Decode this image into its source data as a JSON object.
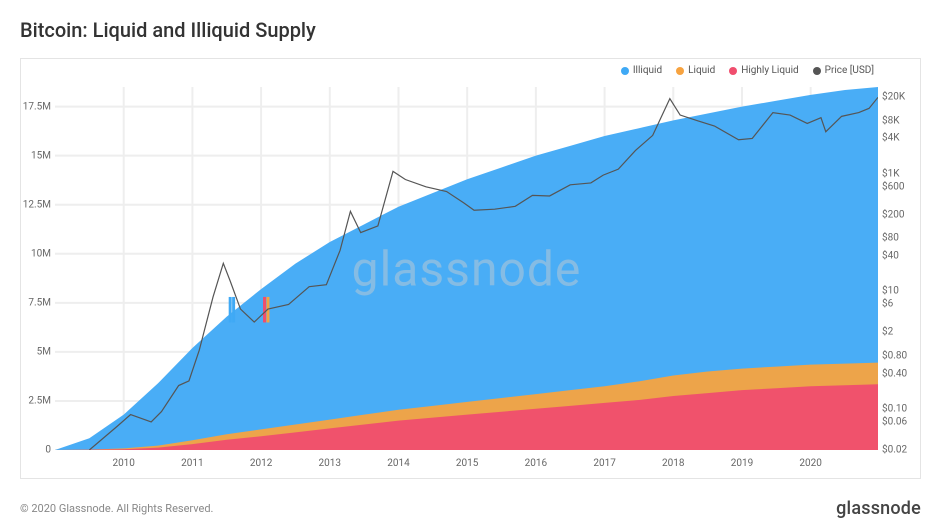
{
  "title": "Bitcoin: Liquid and Illiquid Supply",
  "copyright": "© 2020 Glassnode. All Rights Reserved.",
  "brand": "glassnode",
  "watermark": "glassnode",
  "chart": {
    "type": "stacked-area+line",
    "legend": [
      {
        "label": "Illiquid",
        "color": "#3fa9f5",
        "shape": "dot"
      },
      {
        "label": "Liquid",
        "color": "#f7a340",
        "shape": "dot"
      },
      {
        "label": "Highly Liquid",
        "color": "#f04e6e",
        "shape": "dot"
      },
      {
        "label": "Price [USD]",
        "color": "#555555",
        "shape": "dot"
      }
    ],
    "left_axis": {
      "label_fontsize": 10,
      "label_color": "#666",
      "min": 0,
      "max": 18500000,
      "ticks": [
        {
          "v": 0,
          "label": "0"
        },
        {
          "v": 2500000,
          "label": "2.5M"
        },
        {
          "v": 5000000,
          "label": "5M"
        },
        {
          "v": 7500000,
          "label": "7.5M"
        },
        {
          "v": 10000000,
          "label": "10M"
        },
        {
          "v": 12500000,
          "label": "12.5M"
        },
        {
          "v": 15000000,
          "label": "15M"
        },
        {
          "v": 17500000,
          "label": "17.5M"
        }
      ]
    },
    "right_axis": {
      "scale": "log",
      "label_fontsize": 10,
      "label_color": "#666",
      "min": 0.02,
      "max": 30000,
      "ticks": [
        {
          "v": 0.02,
          "label": "$0.02"
        },
        {
          "v": 0.06,
          "label": "$0.06"
        },
        {
          "v": 0.1,
          "label": "$0.10"
        },
        {
          "v": 0.4,
          "label": "$0.40"
        },
        {
          "v": 0.8,
          "label": "$0.80"
        },
        {
          "v": 2,
          "label": "$2"
        },
        {
          "v": 6,
          "label": "$6"
        },
        {
          "v": 10,
          "label": "$10"
        },
        {
          "v": 40,
          "label": "$40"
        },
        {
          "v": 80,
          "label": "$80"
        },
        {
          "v": 200,
          "label": "$200"
        },
        {
          "v": 600,
          "label": "$600"
        },
        {
          "v": 1000,
          "label": "$1K"
        },
        {
          "v": 4000,
          "label": "$4K"
        },
        {
          "v": 8000,
          "label": "$8K"
        },
        {
          "v": 20000,
          "label": "$20K"
        }
      ]
    },
    "x_axis": {
      "min": 2009.0,
      "max": 2020.98,
      "tick_years": [
        2010,
        2011,
        2012,
        2013,
        2014,
        2015,
        2016,
        2017,
        2018,
        2019,
        2020
      ]
    },
    "series": {
      "highly_liquid": {
        "color": "#f04e6e",
        "opacity": 0.95,
        "points": [
          {
            "x": 2009.0,
            "y": 0
          },
          {
            "x": 2009.5,
            "y": 10000
          },
          {
            "x": 2010.0,
            "y": 40000
          },
          {
            "x": 2010.5,
            "y": 120000
          },
          {
            "x": 2011.0,
            "y": 300000
          },
          {
            "x": 2011.5,
            "y": 520000
          },
          {
            "x": 2012.0,
            "y": 700000
          },
          {
            "x": 2012.5,
            "y": 900000
          },
          {
            "x": 2013.0,
            "y": 1100000
          },
          {
            "x": 2013.5,
            "y": 1300000
          },
          {
            "x": 2014.0,
            "y": 1500000
          },
          {
            "x": 2014.5,
            "y": 1650000
          },
          {
            "x": 2015.0,
            "y": 1800000
          },
          {
            "x": 2015.5,
            "y": 1950000
          },
          {
            "x": 2016.0,
            "y": 2100000
          },
          {
            "x": 2016.5,
            "y": 2250000
          },
          {
            "x": 2017.0,
            "y": 2400000
          },
          {
            "x": 2017.5,
            "y": 2550000
          },
          {
            "x": 2018.0,
            "y": 2750000
          },
          {
            "x": 2018.5,
            "y": 2900000
          },
          {
            "x": 2019.0,
            "y": 3050000
          },
          {
            "x": 2019.5,
            "y": 3150000
          },
          {
            "x": 2020.0,
            "y": 3250000
          },
          {
            "x": 2020.5,
            "y": 3300000
          },
          {
            "x": 2020.98,
            "y": 3350000
          }
        ]
      },
      "liquid": {
        "color": "#f7a340",
        "opacity": 0.95,
        "points": [
          {
            "x": 2009.0,
            "y": 0
          },
          {
            "x": 2009.5,
            "y": 20000
          },
          {
            "x": 2010.0,
            "y": 80000
          },
          {
            "x": 2010.5,
            "y": 220000
          },
          {
            "x": 2011.0,
            "y": 500000
          },
          {
            "x": 2011.5,
            "y": 800000
          },
          {
            "x": 2012.0,
            "y": 1050000
          },
          {
            "x": 2012.5,
            "y": 1300000
          },
          {
            "x": 2013.0,
            "y": 1550000
          },
          {
            "x": 2013.5,
            "y": 1800000
          },
          {
            "x": 2014.0,
            "y": 2050000
          },
          {
            "x": 2014.5,
            "y": 2250000
          },
          {
            "x": 2015.0,
            "y": 2450000
          },
          {
            "x": 2015.5,
            "y": 2650000
          },
          {
            "x": 2016.0,
            "y": 2850000
          },
          {
            "x": 2016.5,
            "y": 3050000
          },
          {
            "x": 2017.0,
            "y": 3250000
          },
          {
            "x": 2017.5,
            "y": 3500000
          },
          {
            "x": 2018.0,
            "y": 3800000
          },
          {
            "x": 2018.5,
            "y": 4000000
          },
          {
            "x": 2019.0,
            "y": 4150000
          },
          {
            "x": 2019.5,
            "y": 4250000
          },
          {
            "x": 2020.0,
            "y": 4350000
          },
          {
            "x": 2020.5,
            "y": 4400000
          },
          {
            "x": 2020.98,
            "y": 4450000
          }
        ]
      },
      "illiquid_total": {
        "color": "#3fa9f5",
        "opacity": 0.95,
        "points": [
          {
            "x": 2009.0,
            "y": 0
          },
          {
            "x": 2009.5,
            "y": 600000
          },
          {
            "x": 2010.0,
            "y": 1800000
          },
          {
            "x": 2010.5,
            "y": 3400000
          },
          {
            "x": 2011.0,
            "y": 5200000
          },
          {
            "x": 2011.5,
            "y": 6800000
          },
          {
            "x": 2012.0,
            "y": 8200000
          },
          {
            "x": 2012.5,
            "y": 9500000
          },
          {
            "x": 2013.0,
            "y": 10600000
          },
          {
            "x": 2013.5,
            "y": 11500000
          },
          {
            "x": 2014.0,
            "y": 12400000
          },
          {
            "x": 2014.5,
            "y": 13100000
          },
          {
            "x": 2015.0,
            "y": 13800000
          },
          {
            "x": 2015.5,
            "y": 14400000
          },
          {
            "x": 2016.0,
            "y": 15000000
          },
          {
            "x": 2016.5,
            "y": 15500000
          },
          {
            "x": 2017.0,
            "y": 16000000
          },
          {
            "x": 2017.5,
            "y": 16400000
          },
          {
            "x": 2018.0,
            "y": 16800000
          },
          {
            "x": 2018.5,
            "y": 17150000
          },
          {
            "x": 2019.0,
            "y": 17500000
          },
          {
            "x": 2019.5,
            "y": 17800000
          },
          {
            "x": 2020.0,
            "y": 18100000
          },
          {
            "x": 2020.5,
            "y": 18350000
          },
          {
            "x": 2020.98,
            "y": 18500000
          }
        ]
      },
      "price": {
        "color": "#555555",
        "stroke_width": 1.2,
        "points": [
          {
            "x": 2009.5,
            "y": 0.02
          },
          {
            "x": 2009.9,
            "y": 0.05
          },
          {
            "x": 2010.1,
            "y": 0.08
          },
          {
            "x": 2010.4,
            "y": 0.06
          },
          {
            "x": 2010.55,
            "y": 0.09
          },
          {
            "x": 2010.8,
            "y": 0.25
          },
          {
            "x": 2010.95,
            "y": 0.3
          },
          {
            "x": 2011.1,
            "y": 1.0
          },
          {
            "x": 2011.3,
            "y": 8
          },
          {
            "x": 2011.45,
            "y": 30
          },
          {
            "x": 2011.55,
            "y": 15
          },
          {
            "x": 2011.7,
            "y": 5
          },
          {
            "x": 2011.9,
            "y": 3
          },
          {
            "x": 2012.1,
            "y": 5
          },
          {
            "x": 2012.4,
            "y": 6
          },
          {
            "x": 2012.7,
            "y": 12
          },
          {
            "x": 2012.95,
            "y": 13
          },
          {
            "x": 2013.15,
            "y": 50
          },
          {
            "x": 2013.3,
            "y": 230
          },
          {
            "x": 2013.45,
            "y": 100
          },
          {
            "x": 2013.7,
            "y": 130
          },
          {
            "x": 2013.92,
            "y": 1100
          },
          {
            "x": 2014.1,
            "y": 800
          },
          {
            "x": 2014.4,
            "y": 600
          },
          {
            "x": 2014.7,
            "y": 500
          },
          {
            "x": 2014.95,
            "y": 320
          },
          {
            "x": 2015.1,
            "y": 240
          },
          {
            "x": 2015.4,
            "y": 250
          },
          {
            "x": 2015.7,
            "y": 280
          },
          {
            "x": 2015.95,
            "y": 430
          },
          {
            "x": 2016.2,
            "y": 420
          },
          {
            "x": 2016.5,
            "y": 650
          },
          {
            "x": 2016.8,
            "y": 700
          },
          {
            "x": 2016.98,
            "y": 950
          },
          {
            "x": 2017.2,
            "y": 1200
          },
          {
            "x": 2017.45,
            "y": 2500
          },
          {
            "x": 2017.7,
            "y": 4500
          },
          {
            "x": 2017.95,
            "y": 19000
          },
          {
            "x": 2018.1,
            "y": 10000
          },
          {
            "x": 2018.35,
            "y": 8000
          },
          {
            "x": 2018.6,
            "y": 6500
          },
          {
            "x": 2018.95,
            "y": 3800
          },
          {
            "x": 2019.15,
            "y": 4000
          },
          {
            "x": 2019.45,
            "y": 11000
          },
          {
            "x": 2019.7,
            "y": 10000
          },
          {
            "x": 2019.95,
            "y": 7200
          },
          {
            "x": 2020.15,
            "y": 9000
          },
          {
            "x": 2020.22,
            "y": 5200
          },
          {
            "x": 2020.45,
            "y": 9500
          },
          {
            "x": 2020.7,
            "y": 11000
          },
          {
            "x": 2020.85,
            "y": 13000
          },
          {
            "x": 2020.98,
            "y": 20000
          }
        ]
      }
    },
    "grid_color": "#eeeeee",
    "background": "#ffffff",
    "price_spikes": [
      {
        "x": 2011.55,
        "color": "#3fa9f5"
      },
      {
        "x": 2011.6,
        "color": "#3fa9f5"
      },
      {
        "x": 2012.05,
        "color": "#f04e6e"
      },
      {
        "x": 2012.1,
        "color": "#f7a340"
      }
    ]
  }
}
